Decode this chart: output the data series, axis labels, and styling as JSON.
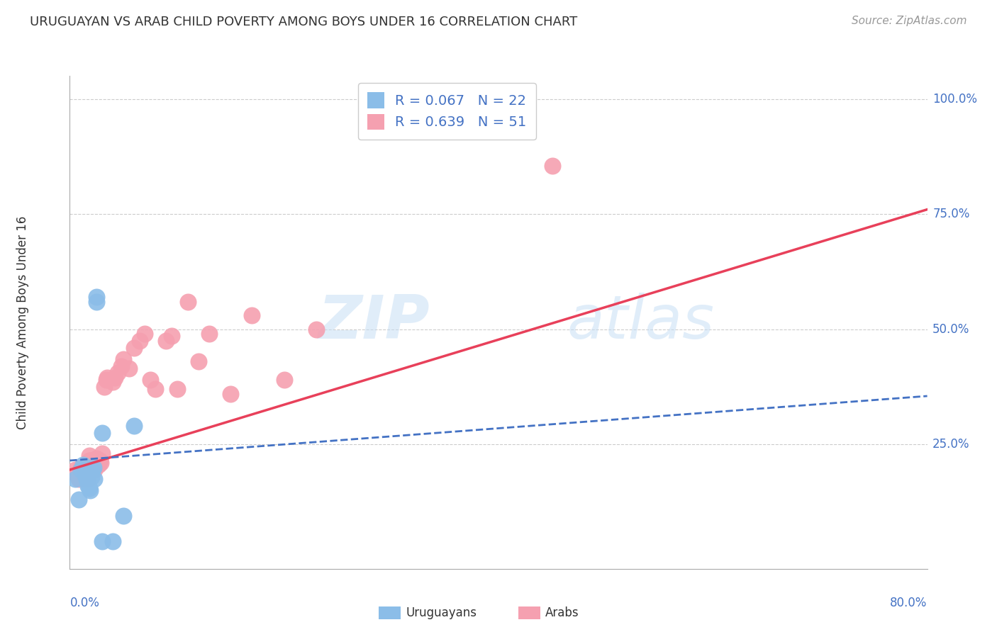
{
  "title": "URUGUAYAN VS ARAB CHILD POVERTY AMONG BOYS UNDER 16 CORRELATION CHART",
  "source": "Source: ZipAtlas.com",
  "ylabel": "Child Poverty Among Boys Under 16",
  "xlim": [
    0.0,
    0.8
  ],
  "ylim": [
    -0.02,
    1.05
  ],
  "yticks": [
    0.25,
    0.5,
    0.75,
    1.0
  ],
  "ytick_labels": [
    "25.0%",
    "50.0%",
    "75.0%",
    "100.0%"
  ],
  "xticks": [
    0.0,
    0.2,
    0.4,
    0.6,
    0.8
  ],
  "background_color": "#ffffff",
  "grid_color": "#cccccc",
  "uruguayan_color": "#8bbde8",
  "arab_color": "#f5a0b0",
  "uruguayan_line_color": "#4472c4",
  "arab_line_color": "#e8405a",
  "legend_r1": "R = 0.067",
  "legend_n1": "N = 22",
  "legend_r2": "R = 0.639",
  "legend_n2": "N = 51",
  "watermark_zip": "ZIP",
  "watermark_atlas": "atlas",
  "uruguayan_x": [
    0.005,
    0.008,
    0.01,
    0.012,
    0.014,
    0.015,
    0.015,
    0.016,
    0.017,
    0.018,
    0.019,
    0.02,
    0.021,
    0.022,
    0.023,
    0.025,
    0.025,
    0.03,
    0.03,
    0.04,
    0.05,
    0.06
  ],
  "uruguayan_y": [
    0.175,
    0.13,
    0.195,
    0.205,
    0.19,
    0.185,
    0.18,
    0.17,
    0.16,
    0.155,
    0.15,
    0.18,
    0.195,
    0.2,
    0.175,
    0.57,
    0.56,
    0.275,
    0.04,
    0.04,
    0.095,
    0.29
  ],
  "arab_x": [
    0.005,
    0.007,
    0.008,
    0.009,
    0.01,
    0.011,
    0.012,
    0.013,
    0.014,
    0.015,
    0.016,
    0.017,
    0.018,
    0.018,
    0.019,
    0.02,
    0.021,
    0.022,
    0.023,
    0.024,
    0.025,
    0.026,
    0.027,
    0.028,
    0.029,
    0.03,
    0.032,
    0.034,
    0.035,
    0.04,
    0.042,
    0.045,
    0.048,
    0.05,
    0.055,
    0.06,
    0.065,
    0.07,
    0.075,
    0.08,
    0.09,
    0.095,
    0.1,
    0.11,
    0.12,
    0.13,
    0.15,
    0.17,
    0.2,
    0.23,
    0.45
  ],
  "arab_y": [
    0.195,
    0.185,
    0.175,
    0.19,
    0.2,
    0.185,
    0.195,
    0.185,
    0.175,
    0.195,
    0.185,
    0.175,
    0.215,
    0.225,
    0.215,
    0.195,
    0.215,
    0.205,
    0.195,
    0.205,
    0.22,
    0.215,
    0.205,
    0.215,
    0.21,
    0.23,
    0.375,
    0.39,
    0.395,
    0.385,
    0.395,
    0.405,
    0.42,
    0.435,
    0.415,
    0.46,
    0.475,
    0.49,
    0.39,
    0.37,
    0.475,
    0.485,
    0.37,
    0.56,
    0.43,
    0.49,
    0.36,
    0.53,
    0.39,
    0.5,
    0.855
  ],
  "uruguayan_trend_x": [
    0.0,
    0.8
  ],
  "uruguayan_trend_y": [
    0.215,
    0.355
  ],
  "arab_trend_x": [
    0.0,
    0.8
  ],
  "arab_trend_y": [
    0.195,
    0.76
  ]
}
